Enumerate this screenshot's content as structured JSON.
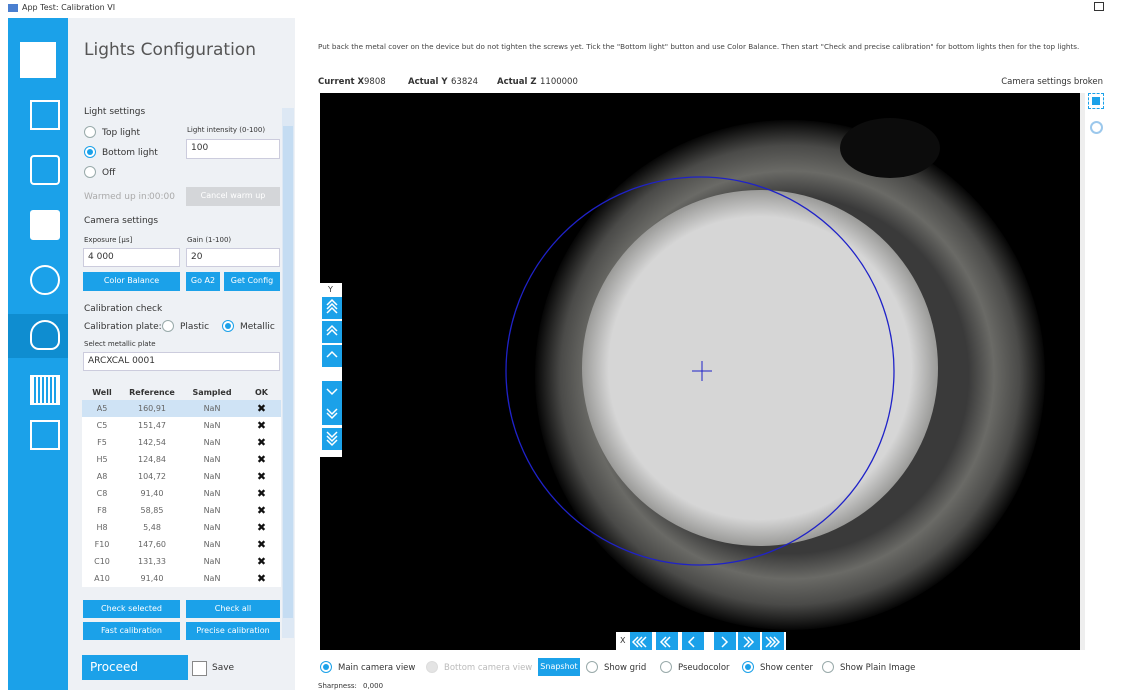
{
  "window": {
    "title": "App Test: Calibration VI"
  },
  "panel": {
    "title": "Lights Configuration",
    "light_settings": {
      "heading": "Light settings",
      "options": [
        "Top light",
        "Bottom light",
        "Off"
      ],
      "selected": 1,
      "intensity_label": "Light intensity (0-100)",
      "intensity": "100",
      "warmed_label": "Warmed up in:",
      "warmed_time": "00:00",
      "cancel_button": "Cancel warm up"
    },
    "camera_settings": {
      "heading": "Camera settings",
      "exposure_label": "Exposure [µs]",
      "exposure": "4 000",
      "gain_label": "Gain (1-100)",
      "gain": "20",
      "buttons": [
        "Color Balance",
        "Go A2",
        "Get Config"
      ]
    },
    "calibration": {
      "heading": "Calibration check",
      "plate_label": "Calibration plate:",
      "plate_options": [
        "Plastic",
        "Metallic"
      ],
      "plate_selected": 1,
      "select_label": "Select metallic plate",
      "plate": "ARCXCAL 0001",
      "table": {
        "columns": [
          "Well",
          "Reference",
          "Sampled",
          "OK"
        ],
        "selected_row": 0,
        "rows": [
          [
            "A5",
            "160,91",
            "NaN",
            "✖"
          ],
          [
            "C5",
            "151,47",
            "NaN",
            "✖"
          ],
          [
            "F5",
            "142,54",
            "NaN",
            "✖"
          ],
          [
            "H5",
            "124,84",
            "NaN",
            "✖"
          ],
          [
            "A8",
            "104,72",
            "NaN",
            "✖"
          ],
          [
            "C8",
            "91,40",
            "NaN",
            "✖"
          ],
          [
            "F8",
            "58,85",
            "NaN",
            "✖"
          ],
          [
            "H8",
            "5,48",
            "NaN",
            "✖"
          ],
          [
            "F10",
            "147,60",
            "NaN",
            "✖"
          ],
          [
            "C10",
            "131,33",
            "NaN",
            "✖"
          ],
          [
            "A10",
            "91,40",
            "NaN",
            "✖"
          ]
        ]
      },
      "buttons": [
        "Check selected",
        "Check all",
        "Fast calibration",
        "Precise calibration"
      ]
    },
    "proceed": "Proceed",
    "save": "Save"
  },
  "instruction": "Put back the metal cover on the device but do not tighten the screws yet. Tick the \"Bottom light\" button and use Color Balance. Then start \"Check and precise calibration\" for bottom lights then for the top lights.",
  "position": [
    {
      "label": "Current X",
      "value": "9808"
    },
    {
      "label": "Actual Y",
      "value": "63824"
    },
    {
      "label": "Actual Z",
      "value": "1100000"
    }
  ],
  "camera_status": "Camera settings broken",
  "nav": {
    "y_label": "Y",
    "x_label": "X"
  },
  "view_options": [
    {
      "label": "Main camera view",
      "checked": true,
      "disabled": false
    },
    {
      "label": "Bottom camera view",
      "checked": false,
      "disabled": true
    },
    {
      "label": "Snapshot",
      "button": true
    },
    {
      "label": "Show grid",
      "checked": false,
      "disabled": false
    },
    {
      "label": "Pseudocolor",
      "checked": false,
      "disabled": false
    },
    {
      "label": "Show center",
      "checked": true,
      "disabled": false
    },
    {
      "label": "Show Plain Image",
      "checked": false,
      "disabled": false
    }
  ],
  "sharpness": {
    "label": "Sharpness:",
    "value": "0,000"
  }
}
